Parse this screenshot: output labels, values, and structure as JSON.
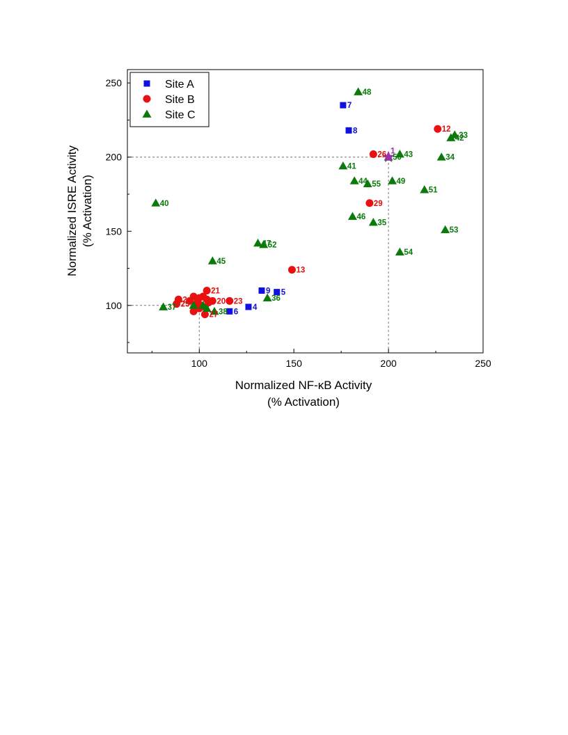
{
  "chart_data": {
    "type": "scatter",
    "title": "",
    "xlabel": "Normalized NF-κB Activity",
    "xlabel_sub": "(% Activation)",
    "ylabel": "Normalized ISRE Activity",
    "ylabel_sub": "(% Activation)",
    "xlim": [
      62,
      250
    ],
    "ylim": [
      68,
      259
    ],
    "x_ticks": [
      100,
      150,
      200,
      250
    ],
    "y_ticks": [
      100,
      150,
      200,
      250
    ],
    "grid": false,
    "legend_position": "top-left",
    "reference_point": {
      "x": 200,
      "y": 200,
      "label": "1",
      "color": "#9b30b0",
      "shape": "star"
    },
    "reference_lines": [
      {
        "axis": "x",
        "value": 100
      },
      {
        "axis": "x",
        "value": 200
      },
      {
        "axis": "y",
        "value": 100
      },
      {
        "axis": "y",
        "value": 200
      }
    ],
    "series": [
      {
        "name": "Site A",
        "color": "#1010e0",
        "label_color": "#1010c8",
        "marker": "square",
        "points": [
          {
            "x": 176,
            "y": 235,
            "label": "7"
          },
          {
            "x": 179,
            "y": 218,
            "label": "8"
          },
          {
            "x": 133,
            "y": 110,
            "label": "9"
          },
          {
            "x": 141,
            "y": 109,
            "label": "5"
          },
          {
            "x": 126,
            "y": 99,
            "label": "4"
          },
          {
            "x": 116,
            "y": 96,
            "label": "6"
          },
          {
            "x": 99,
            "y": 100,
            "label": ""
          }
        ]
      },
      {
        "name": "Site B",
        "color": "#e81010",
        "label_color": "#e01010",
        "marker": "circle",
        "points": [
          {
            "x": 226,
            "y": 219,
            "label": "12"
          },
          {
            "x": 192,
            "y": 202,
            "label": "26"
          },
          {
            "x": 190,
            "y": 169,
            "label": "29"
          },
          {
            "x": 149,
            "y": 124,
            "label": "13"
          },
          {
            "x": 104,
            "y": 110,
            "label": "21"
          },
          {
            "x": 116,
            "y": 103,
            "label": "23"
          },
          {
            "x": 107,
            "y": 103,
            "label": "20"
          },
          {
            "x": 89,
            "y": 104,
            "label": "2"
          },
          {
            "x": 88,
            "y": 101,
            "label": "25"
          },
          {
            "x": 103,
            "y": 94,
            "label": "27"
          },
          {
            "x": 97,
            "y": 106,
            "label": ""
          },
          {
            "x": 100,
            "y": 105,
            "label": ""
          },
          {
            "x": 102,
            "y": 106,
            "label": ""
          },
          {
            "x": 104,
            "y": 104,
            "label": ""
          },
          {
            "x": 95,
            "y": 103,
            "label": ""
          },
          {
            "x": 99,
            "y": 102,
            "label": ""
          },
          {
            "x": 101,
            "y": 100,
            "label": ""
          },
          {
            "x": 97,
            "y": 96,
            "label": ""
          },
          {
            "x": 103,
            "y": 99,
            "label": ""
          },
          {
            "x": 105,
            "y": 102,
            "label": ""
          },
          {
            "x": 100,
            "y": 98,
            "label": ""
          }
        ]
      },
      {
        "name": "Site C",
        "color": "#0a7a0a",
        "label_color": "#0a7a0a",
        "marker": "triangle",
        "points": [
          {
            "x": 184,
            "y": 244,
            "label": "48"
          },
          {
            "x": 235,
            "y": 215,
            "label": "33"
          },
          {
            "x": 233,
            "y": 213,
            "label": "42"
          },
          {
            "x": 206,
            "y": 202,
            "label": "43"
          },
          {
            "x": 200,
            "y": 200,
            "label": "50"
          },
          {
            "x": 228,
            "y": 200,
            "label": "34"
          },
          {
            "x": 176,
            "y": 194,
            "label": "41"
          },
          {
            "x": 182,
            "y": 184,
            "label": "44"
          },
          {
            "x": 189,
            "y": 182,
            "label": "55"
          },
          {
            "x": 202,
            "y": 184,
            "label": "49"
          },
          {
            "x": 219,
            "y": 178,
            "label": "51"
          },
          {
            "x": 77,
            "y": 169,
            "label": "40"
          },
          {
            "x": 181,
            "y": 160,
            "label": "46"
          },
          {
            "x": 192,
            "y": 156,
            "label": "35"
          },
          {
            "x": 230,
            "y": 151,
            "label": "53"
          },
          {
            "x": 131,
            "y": 142,
            "label": "47"
          },
          {
            "x": 134,
            "y": 141,
            "label": "52"
          },
          {
            "x": 206,
            "y": 136,
            "label": "54"
          },
          {
            "x": 107,
            "y": 130,
            "label": "45"
          },
          {
            "x": 136,
            "y": 105,
            "label": "36"
          },
          {
            "x": 81,
            "y": 99,
            "label": "37"
          },
          {
            "x": 108,
            "y": 96,
            "label": "38"
          },
          {
            "x": 97,
            "y": 100,
            "label": ""
          },
          {
            "x": 102,
            "y": 100,
            "label": ""
          },
          {
            "x": 104,
            "y": 98,
            "label": ""
          }
        ]
      }
    ]
  }
}
